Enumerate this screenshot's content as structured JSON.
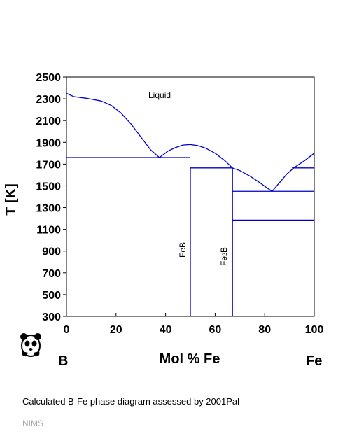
{
  "chart_data": {
    "type": "line",
    "xlabel": "Mol % Fe",
    "ylabel": "T [K]",
    "xlim": [
      0,
      100
    ],
    "ylim": [
      300,
      2500
    ],
    "xticks": [
      "0",
      "20",
      "40",
      "60",
      "80",
      "100"
    ],
    "yticks": [
      "300",
      "500",
      "700",
      "900",
      "1100",
      "1300",
      "1500",
      "1700",
      "1900",
      "2100",
      "2300",
      "2500"
    ],
    "grid": false,
    "line_color": "#0000cc",
    "endpoint_labels": {
      "left": "B",
      "right": "Fe"
    },
    "phase_labels": {
      "liquid": "Liquid",
      "feb": "FeB",
      "fe2b_main": "Fe",
      "fe2b_sub": "2",
      "fe2b_tail": "B"
    },
    "liquidus": [
      {
        "x": [
          0,
          3,
          8,
          14,
          18,
          22,
          26,
          30,
          34,
          37.5
        ],
        "y": [
          2350,
          2320,
          2305,
          2280,
          2240,
          2170,
          2070,
          1950,
          1830,
          1760
        ]
      },
      {
        "x": [
          37.5,
          41,
          44,
          47,
          50,
          53,
          56,
          60,
          64,
          67
        ],
        "y": [
          1760,
          1820,
          1852,
          1875,
          1880,
          1870,
          1848,
          1800,
          1730,
          1665
        ]
      },
      {
        "x": [
          67,
          70,
          74,
          78,
          81,
          83
        ],
        "y": [
          1665,
          1640,
          1590,
          1530,
          1480,
          1450
        ]
      },
      {
        "x": [
          83,
          86,
          89,
          92,
          96,
          100
        ],
        "y": [
          1450,
          1530,
          1610,
          1670,
          1730,
          1800
        ]
      }
    ],
    "isotherms": [
      {
        "x": [
          0,
          50
        ],
        "y": [
          1760,
          1760
        ]
      },
      {
        "x": [
          50,
          67
        ],
        "y": [
          1665,
          1665
        ]
      },
      {
        "x": [
          67,
          100
        ],
        "y": [
          1450,
          1450
        ]
      },
      {
        "x": [
          67,
          100
        ],
        "y": [
          1185,
          1185
        ]
      },
      {
        "x": [
          91,
          100
        ],
        "y": [
          1665,
          1665
        ]
      }
    ],
    "compounds": [
      {
        "name": "FeB",
        "x": 50,
        "y_top": 1665
      },
      {
        "name": "Fe2B",
        "x": 67,
        "y_top": 1665
      }
    ]
  },
  "caption": "Calculated B-Fe phase diagram assessed by 2001Pal",
  "credit": "NIMS",
  "logo_icon": "panda-icon"
}
